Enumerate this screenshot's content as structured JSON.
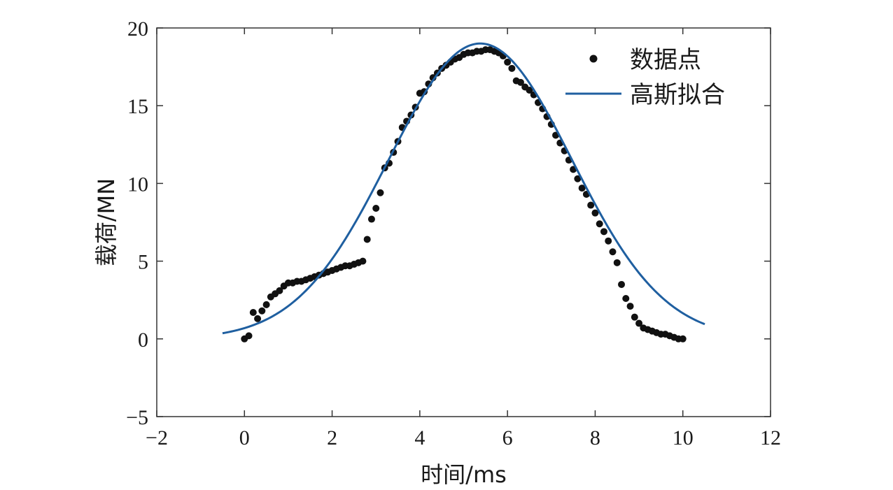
{
  "chart_data": {
    "type": "scatter",
    "xlabel": "时间/ms",
    "ylabel": "载荷/MN",
    "xlim": [
      -2,
      12
    ],
    "ylim": [
      -5,
      20
    ],
    "xticks": [
      -2,
      0,
      2,
      4,
      6,
      8,
      10,
      12
    ],
    "yticks": [
      -5,
      0,
      5,
      10,
      15,
      20
    ],
    "xtick_labels": [
      "−2",
      "0",
      "2",
      "4",
      "6",
      "8",
      "10",
      "12"
    ],
    "ytick_labels": [
      "−5",
      "0",
      "5",
      "10",
      "15",
      "20"
    ],
    "grid": false,
    "legend_position": "top-right",
    "colors": {
      "points": "#111111",
      "fit": "#1f5fa0",
      "axis": "#333333"
    },
    "series": [
      {
        "name": "数据点",
        "kind": "scatter",
        "x": [
          0.0,
          0.1,
          0.2,
          0.3,
          0.4,
          0.5,
          0.6,
          0.7,
          0.8,
          0.9,
          1.0,
          1.1,
          1.2,
          1.3,
          1.4,
          1.5,
          1.6,
          1.7,
          1.8,
          1.9,
          2.0,
          2.1,
          2.2,
          2.3,
          2.4,
          2.5,
          2.6,
          2.7,
          2.8,
          2.9,
          3.0,
          3.1,
          3.2,
          3.3,
          3.4,
          3.5,
          3.6,
          3.7,
          3.8,
          3.9,
          4.0,
          4.1,
          4.2,
          4.3,
          4.4,
          4.5,
          4.6,
          4.7,
          4.8,
          4.9,
          5.0,
          5.1,
          5.2,
          5.3,
          5.4,
          5.5,
          5.6,
          5.7,
          5.8,
          5.9,
          6.0,
          6.1,
          6.2,
          6.3,
          6.4,
          6.5,
          6.6,
          6.7,
          6.8,
          6.9,
          7.0,
          7.1,
          7.2,
          7.3,
          7.4,
          7.5,
          7.6,
          7.7,
          7.8,
          7.9,
          8.0,
          8.1,
          8.2,
          8.3,
          8.4,
          8.5,
          8.6,
          8.7,
          8.8,
          8.9,
          9.0,
          9.1,
          9.2,
          9.3,
          9.4,
          9.5,
          9.6,
          9.7,
          9.8,
          9.9,
          10.0
        ],
        "y": [
          0.0,
          0.2,
          1.7,
          1.3,
          1.8,
          2.2,
          2.7,
          2.9,
          3.1,
          3.4,
          3.6,
          3.6,
          3.7,
          3.7,
          3.8,
          3.9,
          4.0,
          4.1,
          4.2,
          4.3,
          4.4,
          4.5,
          4.6,
          4.7,
          4.7,
          4.8,
          4.9,
          5.0,
          6.4,
          7.7,
          8.4,
          9.4,
          11.0,
          11.3,
          12.0,
          12.7,
          13.6,
          14.0,
          14.4,
          14.9,
          15.8,
          15.9,
          16.4,
          16.8,
          17.1,
          17.4,
          17.6,
          17.8,
          18.0,
          18.1,
          18.3,
          18.4,
          18.4,
          18.5,
          18.5,
          18.6,
          18.6,
          18.5,
          18.4,
          18.2,
          17.8,
          17.4,
          16.6,
          16.5,
          16.2,
          16.0,
          15.7,
          15.2,
          14.8,
          14.3,
          13.8,
          13.1,
          12.6,
          12.1,
          11.5,
          10.9,
          10.3,
          9.7,
          9.3,
          8.6,
          8.1,
          7.4,
          6.9,
          6.3,
          5.6,
          4.9,
          3.5,
          2.6,
          2.1,
          1.4,
          1.0,
          0.7,
          0.6,
          0.5,
          0.4,
          0.3,
          0.3,
          0.2,
          0.1,
          0.0,
          0.0
        ]
      },
      {
        "name": "高斯拟合",
        "kind": "line",
        "model": "gaussian",
        "amplitude": 19.0,
        "mean": 5.38,
        "sigma": 2.09,
        "x_range": [
          -0.5,
          10.5
        ]
      }
    ]
  }
}
